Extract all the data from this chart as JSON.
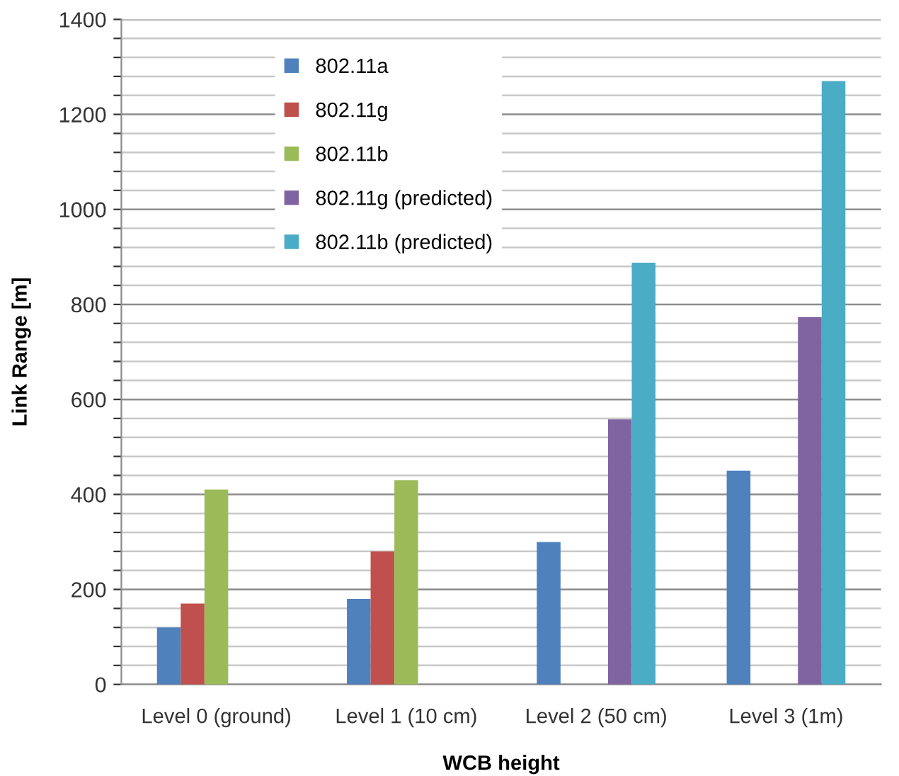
{
  "chart_data": {
    "type": "bar",
    "xlabel": "WCB height",
    "ylabel": "Link Range [m]",
    "categories": [
      "Level 0 (ground)",
      "Level 1 (10 cm)",
      "Level 2 (50 cm)",
      "Level 3 (1m)"
    ],
    "series": [
      {
        "name": "802.11a",
        "color": "#4f81bd",
        "values": [
          120,
          180,
          300,
          450
        ]
      },
      {
        "name": "802.11g",
        "color": "#c0504d",
        "values": [
          170,
          280,
          null,
          null
        ]
      },
      {
        "name": "802.11b",
        "color": "#9bbb59",
        "values": [
          410,
          430,
          null,
          null
        ]
      },
      {
        "name": "802.11g (predicted)",
        "color": "#8064a2",
        "values": [
          null,
          null,
          558,
          773
        ]
      },
      {
        "name": "802.11b (predicted)",
        "color": "#4bacc6",
        "values": [
          null,
          null,
          888,
          1270
        ]
      }
    ],
    "ylim": [
      0,
      1400
    ],
    "yticks": [
      0,
      {
        "value": 40,
        "label": null
      },
      {
        "value": 80,
        "label": null
      },
      {
        "value": 120,
        "label": null
      },
      {
        "value": 160,
        "label": null
      },
      200,
      {
        "value": 240,
        "label": null
      },
      {
        "value": 280,
        "label": null
      },
      {
        "value": 320,
        "label": null
      },
      {
        "value": 360,
        "label": null
      },
      400,
      {
        "value": 440,
        "label": null
      },
      {
        "value": 480,
        "label": null
      },
      {
        "value": 520,
        "label": null
      },
      {
        "value": 560,
        "label": null
      },
      600,
      {
        "value": 640,
        "label": null
      },
      {
        "value": 680,
        "label": null
      },
      {
        "value": 720,
        "label": null
      },
      {
        "value": 760,
        "label": null
      },
      800,
      {
        "value": 840,
        "label": null
      },
      {
        "value": 880,
        "label": null
      },
      {
        "value": 920,
        "label": null
      },
      {
        "value": 960,
        "label": null
      },
      1000,
      {
        "value": 1040,
        "label": null
      },
      {
        "value": 1080,
        "label": null
      },
      {
        "value": 1120,
        "label": null
      },
      {
        "value": 1160,
        "label": null
      },
      1200,
      {
        "value": 1240,
        "label": null
      },
      {
        "value": 1280,
        "label": null
      },
      {
        "value": 1320,
        "label": null
      },
      {
        "value": 1360,
        "label": null
      },
      1400
    ],
    "grid": "y",
    "legend": "top left"
  }
}
